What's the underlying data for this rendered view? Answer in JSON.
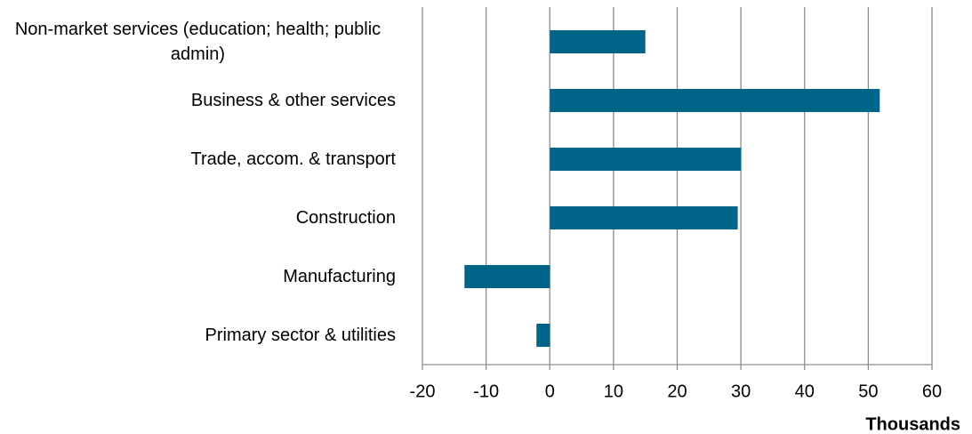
{
  "chart_data": {
    "type": "bar",
    "horizontal": true,
    "categories": [
      "Non-market services (education; health; public admin)",
      "Business & other services",
      "Trade, accom. & transport",
      "Construction",
      "Manufacturing",
      "Primary sector & utilities"
    ],
    "values": [
      15,
      51.8,
      30,
      29.5,
      -13.4,
      -2.1
    ],
    "color": "#006589",
    "xlim": [
      -20,
      60
    ],
    "xticks": [
      -20,
      -10,
      0,
      10,
      20,
      30,
      40,
      50,
      60
    ],
    "xlabel": "Thousands",
    "grid": true
  }
}
